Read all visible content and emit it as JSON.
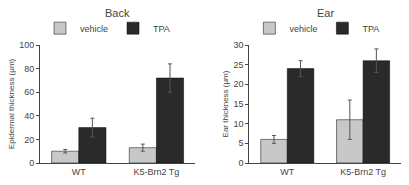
{
  "chart_data": [
    {
      "type": "bar",
      "title": "Back",
      "ylabel": "Epidermal thickness (μm)",
      "categories": [
        "WT",
        "K5-Brn2 Tg"
      ],
      "series": [
        {
          "name": "vehicle",
          "color": "#c8c8c8",
          "values": [
            10,
            13
          ],
          "error": [
            1.5,
            3
          ]
        },
        {
          "name": "TPA",
          "color": "#2a2a2a",
          "values": [
            30,
            72
          ],
          "error": [
            8,
            12
          ]
        }
      ],
      "ylim": [
        0,
        100
      ],
      "yticks": [
        0,
        20,
        40,
        60,
        80,
        100
      ],
      "grid": false,
      "legend": "top"
    },
    {
      "type": "bar",
      "title": "Ear",
      "ylabel": "Ear thickness (μm)",
      "categories": [
        "WT",
        "K5-Brn2 Tg"
      ],
      "series": [
        {
          "name": "vehicle",
          "color": "#c8c8c8",
          "values": [
            6,
            11
          ],
          "error": [
            1,
            5
          ]
        },
        {
          "name": "TPA",
          "color": "#2a2a2a",
          "values": [
            24,
            26
          ],
          "error": [
            2,
            3
          ]
        }
      ],
      "ylim": [
        0,
        30
      ],
      "yticks": [
        0,
        5,
        10,
        15,
        20,
        25,
        30
      ],
      "grid": false,
      "legend": "top"
    }
  ]
}
